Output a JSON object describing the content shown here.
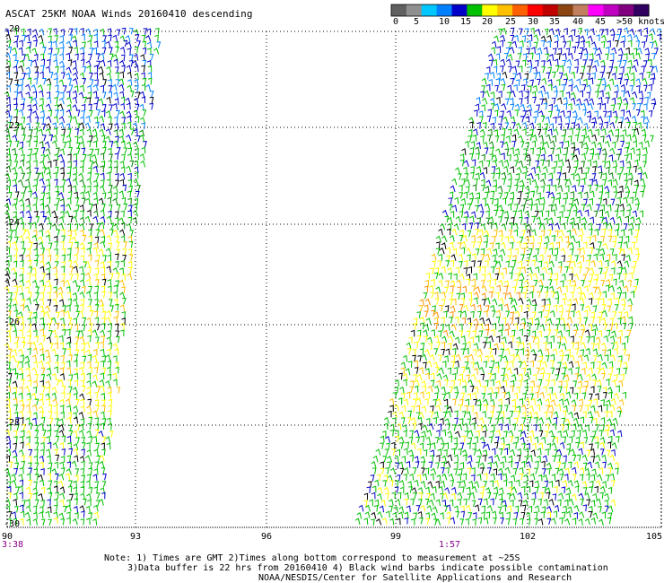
{
  "title": "ASCAT 25KM NOAA Winds 20160410 descending",
  "legend": {
    "colors": [
      "#606060",
      "#909090",
      "#00c8ff",
      "#0080ff",
      "#0000c8",
      "#00c000",
      "#ffff00",
      "#ffc000",
      "#ff6000",
      "#ff0000",
      "#c00000",
      "#8b4513",
      "#c08060",
      "#ff00ff",
      "#c000c0",
      "#800080",
      "#300060"
    ],
    "labels": [
      "0",
      "5",
      "10",
      "15",
      "20",
      "25",
      "30",
      "35",
      "40",
      "45",
      ">50 knots"
    ]
  },
  "axes": {
    "x_ticks": [
      "90",
      "93",
      "96",
      "99",
      "102",
      "105"
    ],
    "y_ticks": [
      "-20",
      "-22",
      "-24",
      "-26",
      "-28",
      "-30"
    ]
  },
  "times": {
    "left": "3:38",
    "right": "1:57"
  },
  "notes": {
    "line1": "Note: 1) Times are GMT 2)Times along bottom correspond to measurement at ~25S",
    "line2": "3)Data buffer is 22 hrs from 20160410 4) Black wind barbs indicate possible contamination",
    "line3": "NOAA/NESDIS/Center for Satellite Applications and Research"
  },
  "palette": {
    "grid": "#000000",
    "time_label": "#880088"
  }
}
